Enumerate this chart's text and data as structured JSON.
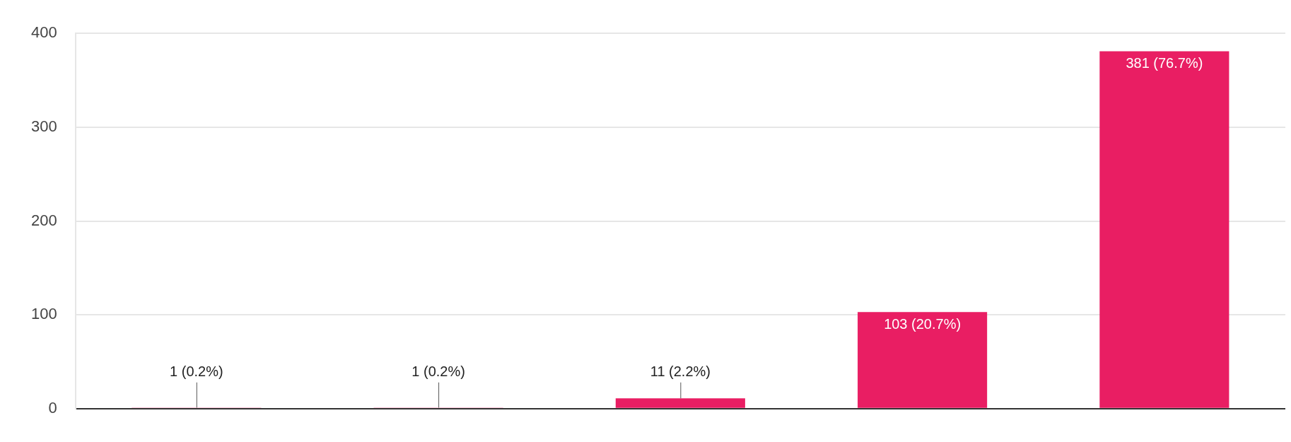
{
  "chart_data": {
    "type": "bar",
    "categories": [
      null,
      null,
      null,
      null,
      null
    ],
    "values": [
      1,
      1,
      11,
      103,
      381
    ],
    "value_labels": [
      "1 (0.2%)",
      "1 (0.2%)",
      "11 (2.2%)",
      "103 (20.7%)",
      "381 (76.7%)"
    ],
    "color": "#e91e63",
    "ylim": [
      0,
      400
    ],
    "yticks": [
      0,
      100,
      200,
      300,
      400
    ],
    "grid": "y",
    "legend": false
  }
}
